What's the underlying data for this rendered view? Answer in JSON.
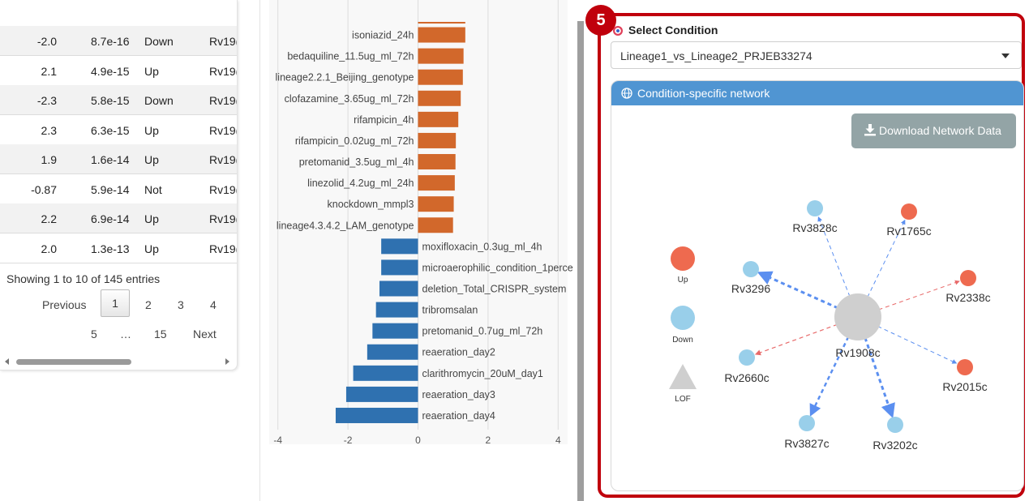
{
  "table": {
    "rows": [
      {
        "fc": "-2.0",
        "p": "8.7e-16",
        "dir": "Down",
        "gene": "Rv19("
      },
      {
        "fc": "2.1",
        "p": "4.9e-15",
        "dir": "Up",
        "gene": "Rv19("
      },
      {
        "fc": "-2.3",
        "p": "5.8e-15",
        "dir": "Down",
        "gene": "Rv19("
      },
      {
        "fc": "2.3",
        "p": "6.3e-15",
        "dir": "Up",
        "gene": "Rv19("
      },
      {
        "fc": "1.9",
        "p": "1.6e-14",
        "dir": "Up",
        "gene": "Rv19("
      },
      {
        "fc": "-0.87",
        "p": "5.9e-14",
        "dir": "Not",
        "gene": "Rv19("
      },
      {
        "fc": "2.2",
        "p": "6.9e-14",
        "dir": "Up",
        "gene": "Rv19("
      },
      {
        "fc": "2.0",
        "p": "1.3e-13",
        "dir": "Up",
        "gene": "Rv19("
      }
    ],
    "info": "Showing 1 to 10 of 145 entries",
    "pagination": {
      "previous": "Previous",
      "pages": [
        "1",
        "2",
        "3",
        "4",
        "5",
        "…",
        "15"
      ],
      "next": "Next"
    }
  },
  "chart_data": {
    "type": "bar",
    "orientation": "horizontal",
    "categories": [
      "isoniazid_24h",
      "bedaquiline_11.5ug_ml_72h",
      "lineage2.2.1_Beijing_genotype",
      "clofazamine_3.65ug_ml_72h",
      "rifampicin_4h",
      "rifampicin_0.02ug_ml_72h",
      "pretomanid_3.5ug_ml_4h",
      "linezolid_4.2ug_ml_24h",
      "knockdown_mmpl3",
      "lineage4.3.4.2_LAM_genotype",
      "moxifloxacin_0.3ug_ml_4h",
      "microaerophilic_condition_1perce",
      "deletion_Total_CRISPR_system",
      "tribromsalan",
      "pretomanid_0.7ug_ml_72h",
      "reaeration_day2",
      "clarithromycin_20uM_day1",
      "reaeration_day3",
      "reaeration_day4"
    ],
    "values": [
      1.35,
      1.3,
      1.28,
      1.22,
      1.15,
      1.08,
      1.07,
      1.05,
      1.02,
      1.0,
      -1.05,
      -1.05,
      -1.1,
      -1.2,
      -1.3,
      -1.45,
      -1.85,
      -2.05,
      -2.35
    ],
    "xlim": [
      -4,
      4
    ],
    "xticks": [
      "-4",
      "-2",
      "0",
      "2",
      "4"
    ],
    "colors": {
      "positive": "#d2682b",
      "negative": "#2f71b0"
    },
    "grid": true
  },
  "panel": {
    "step_badge": "5",
    "select_label": "Select Condition",
    "selected_condition": "Lineage1_vs_Lineage2_PRJEB33274",
    "card_title": "Condition-specific network",
    "download_label": "Download Network Data"
  },
  "network": {
    "center": "Rv1908c",
    "legend": [
      {
        "label": "Up",
        "color": "#ee6a4f",
        "shape": "circle"
      },
      {
        "label": "Down",
        "color": "#99cfea",
        "shape": "circle"
      },
      {
        "label": "LOF",
        "color": "#cfcfcf",
        "shape": "triangle"
      }
    ],
    "nodes": [
      {
        "label": "Rv3828c",
        "status": "Down"
      },
      {
        "label": "Rv1765c",
        "status": "Up"
      },
      {
        "label": "Rv3296",
        "status": "Down"
      },
      {
        "label": "Rv2338c",
        "status": "Up"
      },
      {
        "label": "Rv2660c",
        "status": "Down"
      },
      {
        "label": "Rv2015c",
        "status": "Up"
      },
      {
        "label": "Rv3827c",
        "status": "Down"
      },
      {
        "label": "Rv3202c",
        "status": "Down"
      }
    ],
    "colors": {
      "up": "#ee6a4f",
      "down": "#99cfea",
      "center": "#cfcfcf",
      "edge_blue": "#5b8ff0",
      "edge_red": "#e86a6a"
    }
  }
}
